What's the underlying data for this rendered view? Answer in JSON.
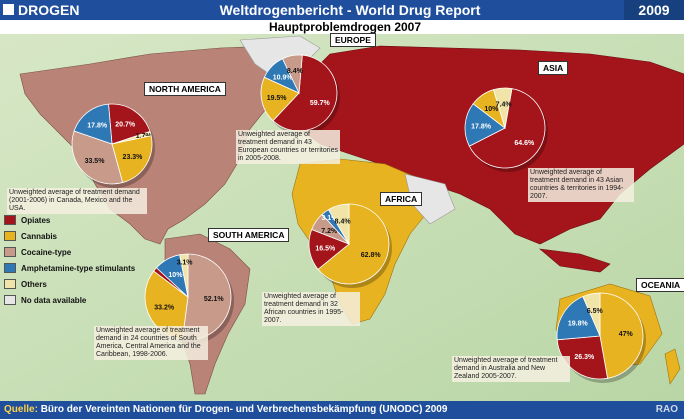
{
  "header": {
    "section": "DROGEN",
    "title": "Weltdrogenbericht - World Drug Report",
    "year": "2009",
    "subtitle": "Hauptproblemdrogen 2007"
  },
  "legend": [
    {
      "label": "Opiates",
      "color": "#a3151b"
    },
    {
      "label": "Cannabis",
      "color": "#e8b320"
    },
    {
      "label": "Cocaine-type",
      "color": "#c89a8a"
    },
    {
      "label": "Amphetamine-type stimulants",
      "color": "#2e78b5"
    },
    {
      "label": "Others",
      "color": "#f1e4a8"
    },
    {
      "label": "No data available",
      "color": "#e6e6e6"
    }
  ],
  "regions": [
    {
      "name": "NORTH AMERICA",
      "note": "Unweighted average of treatment demand (2001-2006) in Canada, Mexico and the USA.",
      "slices": [
        {
          "label": "20.7%",
          "value": 20.7,
          "color": "#a3151b"
        },
        {
          "label": "1.7%",
          "value": 1.7,
          "color": "#f1e4a8"
        },
        {
          "label": "23.3%",
          "value": 23.3,
          "color": "#e8b320"
        },
        {
          "label": "33.5%",
          "value": 33.5,
          "color": "#c89a8a"
        },
        {
          "label": "17.8%",
          "value": 17.8,
          "color": "#2e78b5"
        }
      ]
    },
    {
      "name": "EUROPE",
      "note": "Unweighted average of treatment demand in 43 European countries or territories in 2005-2008.",
      "slices": [
        {
          "label": "59.7%",
          "value": 59.7,
          "color": "#a3151b"
        },
        {
          "label": "19.5%",
          "value": 19.5,
          "color": "#e8b320"
        },
        {
          "label": "10.9%",
          "value": 10.9,
          "color": "#2e78b5"
        },
        {
          "label": "8.4%",
          "value": 8.4,
          "color": "#c89a8a"
        }
      ]
    },
    {
      "name": "ASIA",
      "note": "Unweighted average of treatment demand in 43 Asian countries & territories in 1994-2007.",
      "slices": [
        {
          "label": "64.6%",
          "value": 64.6,
          "color": "#a3151b"
        },
        {
          "label": "17.8%",
          "value": 17.8,
          "color": "#2e78b5"
        },
        {
          "label": "10%",
          "value": 10,
          "color": "#e8b320"
        },
        {
          "label": "7.4%",
          "value": 7.4,
          "color": "#f1e4a8"
        }
      ]
    },
    {
      "name": "AFRICA",
      "note": "Unweighted average of treatment demand in 32 African countries in 1995-2007.",
      "slices": [
        {
          "label": "62.8%",
          "value": 62.8,
          "color": "#e8b320"
        },
        {
          "label": "16.5%",
          "value": 16.5,
          "color": "#a3151b"
        },
        {
          "label": "7.2%",
          "value": 7.2,
          "color": "#c89a8a"
        },
        {
          "label": "3.1%",
          "value": 3.1,
          "color": "#2e78b5"
        },
        {
          "label": "8.4%",
          "value": 8.4,
          "color": "#f1e4a8"
        }
      ]
    },
    {
      "name": "SOUTH AMERICA",
      "note": "Unweighted average of treatment demand in 24 countries of South America, Central America and the Caribbean, 1998-2006.",
      "slices": [
        {
          "label": "52.1%",
          "value": 52.1,
          "color": "#c89a8a"
        },
        {
          "label": "33.2%",
          "value": 33.2,
          "color": "#e8b320"
        },
        {
          "label": "",
          "value": 1.6,
          "color": "#a3151b"
        },
        {
          "label": "10%",
          "value": 10,
          "color": "#2e78b5"
        },
        {
          "label": "3.1%",
          "value": 3.1,
          "color": "#f1e4a8"
        }
      ]
    },
    {
      "name": "OCEANIA",
      "note": "Unweighted average of treatment demand in Australia and New Zealand 2005-2007.",
      "slices": [
        {
          "label": "47%",
          "value": 47,
          "color": "#e8b320"
        },
        {
          "label": "26.3%",
          "value": 26.3,
          "color": "#a3151b"
        },
        {
          "label": "19.8%",
          "value": 19.8,
          "color": "#2e78b5"
        },
        {
          "label": "6.5%",
          "value": 6.5,
          "color": "#f1e4a8"
        }
      ]
    }
  ],
  "footer": {
    "source_label": "Quelle:",
    "source": "Büro der Vereinten Nationen für Drogen- und Verbrechensbekämpfung (UNODC) 2009",
    "credit": "RAO"
  }
}
